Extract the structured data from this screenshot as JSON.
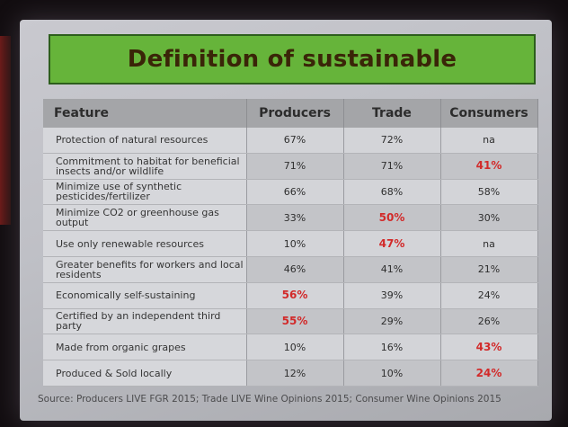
{
  "title": "Definition of sustainable",
  "table": {
    "headers": [
      "Feature",
      "Producers",
      "Trade",
      "Consumers"
    ],
    "rows": [
      {
        "feature": "Protection of natural resources",
        "producers": "67%",
        "trade": "72%",
        "consumers": "na",
        "hi": []
      },
      {
        "feature": "Commitment to habitat for beneficial insects and/or wildlife",
        "producers": "71%",
        "trade": "71%",
        "consumers": "41%",
        "hi": [
          "consumers"
        ]
      },
      {
        "feature": "Minimize use of synthetic pesticides/fertilizer",
        "producers": "66%",
        "trade": "68%",
        "consumers": "58%",
        "hi": []
      },
      {
        "feature": "Minimize CO2 or greenhouse gas output",
        "producers": "33%",
        "trade": "50%",
        "consumers": "30%",
        "hi": [
          "trade"
        ]
      },
      {
        "feature": "Use only renewable resources",
        "producers": "10%",
        "trade": "47%",
        "consumers": "na",
        "hi": [
          "trade"
        ]
      },
      {
        "feature": "Greater benefits for workers and local residents",
        "producers": "46%",
        "trade": "41%",
        "consumers": "21%",
        "hi": []
      },
      {
        "feature": "Economically self-sustaining",
        "producers": "56%",
        "trade": "39%",
        "consumers": "24%",
        "hi": [
          "producers"
        ]
      },
      {
        "feature": "Certified by an independent third party",
        "producers": "55%",
        "trade": "29%",
        "consumers": "26%",
        "hi": [
          "producers"
        ]
      },
      {
        "feature": "Made from organic grapes",
        "producers": "10%",
        "trade": "16%",
        "consumers": "43%",
        "hi": [
          "consumers"
        ]
      },
      {
        "feature": "Produced & Sold locally",
        "producers": "12%",
        "trade": "10%",
        "consumers": "24%",
        "hi": [
          "consumers"
        ]
      }
    ]
  },
  "source": "Source: Producers LIVE FGR 2015; Trade LIVE Wine Opinions 2015; Consumer Wine Opinions 2015",
  "colors": {
    "title_bg": "#66b43a",
    "highlight": "#d22a2a"
  }
}
